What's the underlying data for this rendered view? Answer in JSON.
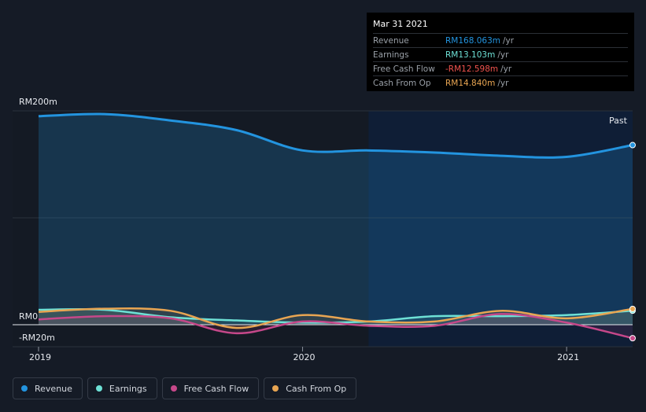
{
  "tooltip": {
    "date": "Mar 31 2021",
    "rows": [
      {
        "label": "Revenue",
        "value": "RM168.063m",
        "unit": "/yr",
        "color": "#2394df"
      },
      {
        "label": "Earnings",
        "value": "RM13.103m",
        "unit": "/yr",
        "color": "#6ee1d6"
      },
      {
        "label": "Free Cash Flow",
        "value": "-RM12.598m",
        "unit": "/yr",
        "color": "#f0534e"
      },
      {
        "label": "Cash From Op",
        "value": "RM14.840m",
        "unit": "/yr",
        "color": "#e8a552"
      }
    ]
  },
  "past_label": "Past",
  "legend": [
    {
      "label": "Revenue",
      "color": "#2394df"
    },
    {
      "label": "Earnings",
      "color": "#6ee1d6"
    },
    {
      "label": "Free Cash Flow",
      "color": "#c6488a"
    },
    {
      "label": "Cash From Op",
      "color": "#e8a552"
    }
  ],
  "chart_data": {
    "type": "line",
    "y_tick_labels": [
      "RM200m",
      "RM0",
      "-RM20m"
    ],
    "x_tick_labels": [
      "2019",
      "2020",
      "2021"
    ],
    "ylim": [
      -20,
      200
    ],
    "xlim": [
      2019.0,
      2021.25
    ],
    "highlight_from": 2020.25,
    "series": [
      {
        "name": "Revenue",
        "color": "#2394df",
        "area": true,
        "x": [
          2019.0,
          2019.25,
          2019.5,
          2019.75,
          2020.0,
          2020.25,
          2020.5,
          2020.75,
          2021.0,
          2021.25
        ],
        "values": [
          195,
          197,
          191,
          182,
          163,
          163,
          161,
          158,
          157,
          168
        ]
      },
      {
        "name": "Earnings",
        "color": "#6ee1d6",
        "area": true,
        "x": [
          2019.0,
          2019.25,
          2019.5,
          2019.75,
          2020.0,
          2020.25,
          2020.5,
          2020.75,
          2021.0,
          2021.25
        ],
        "values": [
          14,
          14,
          7,
          4,
          2,
          3,
          8,
          8,
          9,
          13.1
        ]
      },
      {
        "name": "Free Cash Flow",
        "color": "#c6488a",
        "area": true,
        "x": [
          2019.0,
          2019.25,
          2019.5,
          2019.75,
          2020.0,
          2020.25,
          2020.5,
          2020.75,
          2021.0,
          2021.25
        ],
        "values": [
          5,
          8,
          6,
          -8,
          3,
          -1,
          -1,
          10,
          2,
          -12.6
        ]
      },
      {
        "name": "Cash From Op",
        "color": "#e8a552",
        "area": true,
        "x": [
          2019.0,
          2019.25,
          2019.5,
          2019.75,
          2020.0,
          2020.25,
          2020.5,
          2020.75,
          2021.0,
          2021.25
        ],
        "values": [
          12,
          15,
          13,
          -3,
          9,
          3,
          3,
          13,
          6,
          14.8
        ]
      }
    ]
  }
}
